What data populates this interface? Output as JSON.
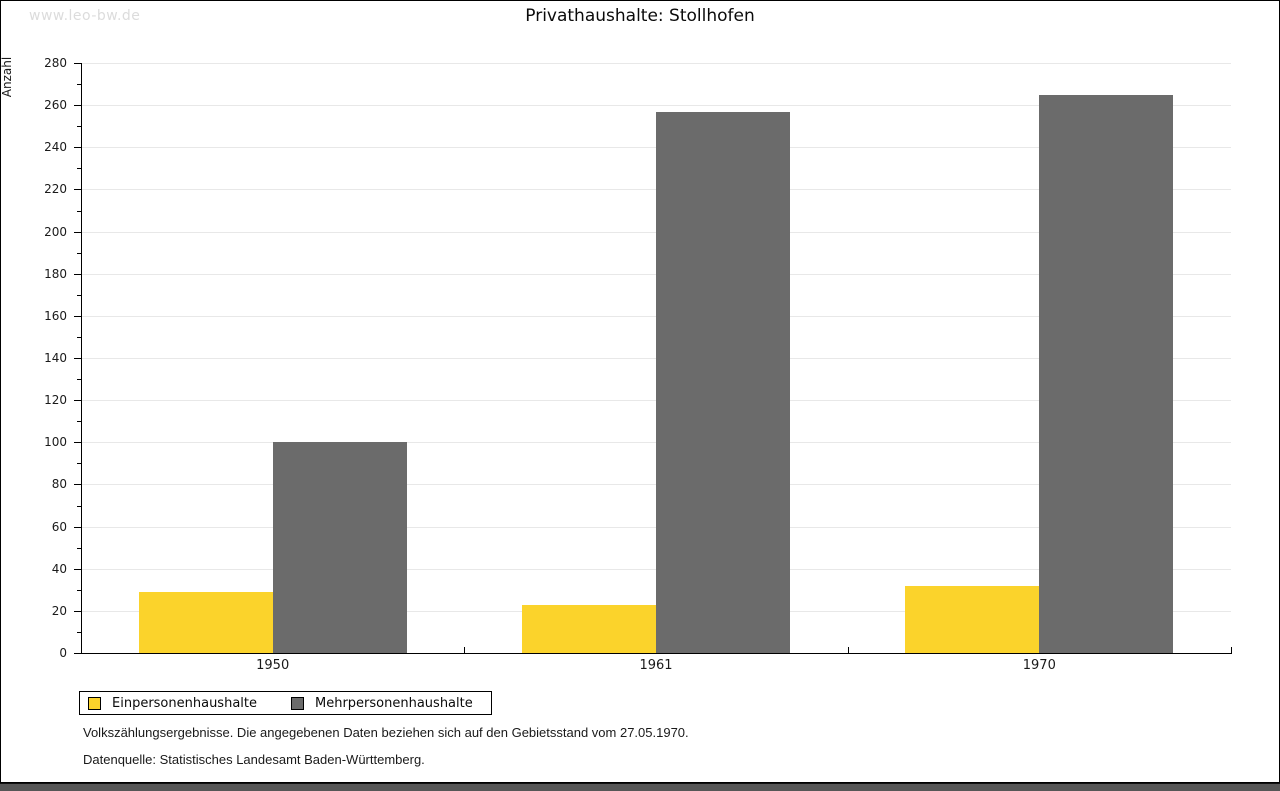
{
  "watermark": "www.leo-bw.de",
  "title": "Privathaushalte: Stollhofen",
  "chart_data": {
    "type": "bar",
    "title": "Privathaushalte: Stollhofen",
    "xlabel": "",
    "ylabel": "Anzahl",
    "categories": [
      "1950",
      "1961",
      "1970"
    ],
    "series": [
      {
        "name": "Einpersonenhaushalte",
        "color": "#FBD32B",
        "values": [
          29,
          23,
          32
        ]
      },
      {
        "name": "Mehrpersonenhaushalte",
        "color": "#6B6B6B",
        "values": [
          100,
          257,
          265
        ]
      }
    ],
    "ylim": [
      0,
      280
    ],
    "ytick_step": 20,
    "yminor_step": 10,
    "grid": true,
    "legend_position": "bottom-left",
    "bar_color_yellow": "#FBD32B",
    "bar_color_gray": "#6B6B6B",
    "gridline_color": "#e8e8e8"
  },
  "footer": {
    "line1": "Volkszählungsergebnisse. Die angegebenen Daten beziehen sich auf den Gebietsstand vom 27.05.1970.",
    "line2": "Datenquelle: Statistisches Landesamt Baden-Württemberg."
  }
}
